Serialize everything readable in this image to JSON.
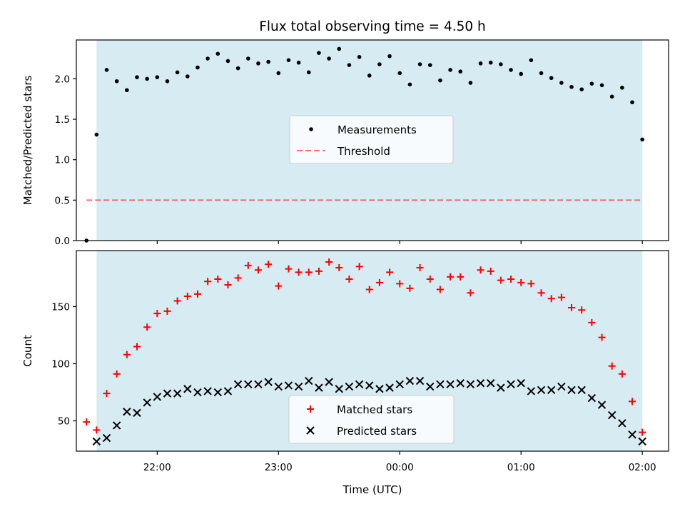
{
  "title": "Flux total observing time = 4.50 h",
  "colors": {
    "shade": "#add8e6",
    "measurement": "#000000",
    "threshold": "#ff0000",
    "matched": "#ff0000",
    "predicted": "#000000",
    "legend_bg": "#ffffff",
    "legend_border": "#cccccc"
  },
  "chart_data": [
    {
      "type": "scatter",
      "ylabel": "Matched/Predicted stars",
      "xlabel": "",
      "ylim": [
        0,
        2.48
      ],
      "yticks": [
        0.0,
        0.5,
        1.0,
        1.5,
        2.0
      ],
      "ytick_labels": [
        "0.0",
        "0.5",
        "1.0",
        "1.5",
        "2.0"
      ],
      "legend_position": "center",
      "shaded_span": {
        "start": "21:30",
        "end": "02:00"
      },
      "threshold": {
        "name": "Threshold",
        "value": 0.5,
        "x_start": "21:25",
        "x_end": "02:00",
        "style": "dashed"
      },
      "series": [
        {
          "name": "Measurements",
          "marker": "dot",
          "points": [
            [
              "21:25",
              0.0
            ],
            [
              "21:30",
              1.31
            ],
            [
              "21:35",
              2.11
            ],
            [
              "21:40",
              1.97
            ],
            [
              "21:45",
              1.86
            ],
            [
              "21:50",
              2.02
            ],
            [
              "21:55",
              2.0
            ],
            [
              "22:00",
              2.02
            ],
            [
              "22:05",
              1.97
            ],
            [
              "22:10",
              2.08
            ],
            [
              "22:15",
              2.03
            ],
            [
              "22:20",
              2.14
            ],
            [
              "22:25",
              2.25
            ],
            [
              "22:30",
              2.31
            ],
            [
              "22:35",
              2.22
            ],
            [
              "22:40",
              2.13
            ],
            [
              "22:45",
              2.25
            ],
            [
              "22:50",
              2.19
            ],
            [
              "22:55",
              2.21
            ],
            [
              "23:00",
              2.07
            ],
            [
              "23:05",
              2.23
            ],
            [
              "23:10",
              2.2
            ],
            [
              "23:15",
              2.08
            ],
            [
              "23:20",
              2.32
            ],
            [
              "23:25",
              2.25
            ],
            [
              "23:30",
              2.37
            ],
            [
              "23:35",
              2.17
            ],
            [
              "23:40",
              2.27
            ],
            [
              "23:45",
              2.04
            ],
            [
              "23:50",
              2.18
            ],
            [
              "23:55",
              2.28
            ],
            [
              "00:00",
              2.07
            ],
            [
              "00:05",
              1.93
            ],
            [
              "00:10",
              2.18
            ],
            [
              "00:15",
              2.17
            ],
            [
              "00:20",
              1.98
            ],
            [
              "00:25",
              2.11
            ],
            [
              "00:30",
              2.09
            ],
            [
              "00:35",
              1.95
            ],
            [
              "00:40",
              2.19
            ],
            [
              "00:45",
              2.2
            ],
            [
              "00:50",
              2.18
            ],
            [
              "00:55",
              2.11
            ],
            [
              "01:00",
              2.06
            ],
            [
              "01:05",
              2.23
            ],
            [
              "01:10",
              2.07
            ],
            [
              "01:15",
              2.01
            ],
            [
              "01:20",
              1.95
            ],
            [
              "01:25",
              1.9
            ],
            [
              "01:30",
              1.87
            ],
            [
              "01:35",
              1.94
            ],
            [
              "01:40",
              1.92
            ],
            [
              "01:45",
              1.78
            ],
            [
              "01:50",
              1.89
            ],
            [
              "01:55",
              1.71
            ],
            [
              "02:00",
              1.25
            ]
          ]
        }
      ]
    },
    {
      "type": "scatter",
      "ylabel": "Count",
      "xlabel": "Time (UTC)",
      "ylim": [
        23.5,
        199
      ],
      "yticks": [
        50,
        100,
        150
      ],
      "ytick_labels": [
        "50",
        "100",
        "150"
      ],
      "xticks": [
        "22:00",
        "23:00",
        "00:00",
        "01:00",
        "02:00"
      ],
      "xtick_labels": [
        "22:00",
        "23:00",
        "00:00",
        "01:00",
        "02:00"
      ],
      "legend_position": "bottom-center",
      "shaded_span": {
        "start": "21:30",
        "end": "02:00"
      },
      "series": [
        {
          "name": "Matched stars",
          "marker": "plus",
          "points": [
            [
              "21:25",
              49
            ],
            [
              "21:30",
              42
            ],
            [
              "21:35",
              74
            ],
            [
              "21:40",
              91
            ],
            [
              "21:45",
              108
            ],
            [
              "21:50",
              115
            ],
            [
              "21:55",
              132
            ],
            [
              "22:00",
              144
            ],
            [
              "22:05",
              146
            ],
            [
              "22:10",
              155
            ],
            [
              "22:15",
              159
            ],
            [
              "22:20",
              161
            ],
            [
              "22:25",
              172
            ],
            [
              "22:30",
              174
            ],
            [
              "22:35",
              169
            ],
            [
              "22:40",
              175
            ],
            [
              "22:45",
              186
            ],
            [
              "22:50",
              182
            ],
            [
              "22:55",
              187
            ],
            [
              "23:00",
              168
            ],
            [
              "23:05",
              183
            ],
            [
              "23:10",
              180
            ],
            [
              "23:15",
              180
            ],
            [
              "23:20",
              181
            ],
            [
              "23:25",
              189
            ],
            [
              "23:30",
              184
            ],
            [
              "23:35",
              174
            ],
            [
              "23:40",
              185
            ],
            [
              "23:45",
              165
            ],
            [
              "23:50",
              171
            ],
            [
              "23:55",
              180
            ],
            [
              "00:00",
              170
            ],
            [
              "00:05",
              166
            ],
            [
              "00:10",
              184
            ],
            [
              "00:15",
              174
            ],
            [
              "00:20",
              165
            ],
            [
              "00:25",
              176
            ],
            [
              "00:30",
              176
            ],
            [
              "00:35",
              162
            ],
            [
              "00:40",
              182
            ],
            [
              "00:45",
              181
            ],
            [
              "00:50",
              173
            ],
            [
              "00:55",
              174
            ],
            [
              "01:00",
              171
            ],
            [
              "01:05",
              170
            ],
            [
              "01:10",
              162
            ],
            [
              "01:15",
              157
            ],
            [
              "01:20",
              158
            ],
            [
              "01:25",
              149
            ],
            [
              "01:30",
              147
            ],
            [
              "01:35",
              136
            ],
            [
              "01:40",
              123
            ],
            [
              "01:45",
              98
            ],
            [
              "01:50",
              91
            ],
            [
              "01:55",
              67
            ],
            [
              "02:00",
              40
            ]
          ]
        },
        {
          "name": "Predicted stars",
          "marker": "x",
          "points": [
            [
              "21:30",
              32
            ],
            [
              "21:35",
              35
            ],
            [
              "21:40",
              46
            ],
            [
              "21:45",
              58
            ],
            [
              "21:50",
              57
            ],
            [
              "21:55",
              66
            ],
            [
              "22:00",
              71
            ],
            [
              "22:05",
              74
            ],
            [
              "22:10",
              74
            ],
            [
              "22:15",
              78
            ],
            [
              "22:20",
              75
            ],
            [
              "22:25",
              76
            ],
            [
              "22:30",
              75
            ],
            [
              "22:35",
              76
            ],
            [
              "22:40",
              82
            ],
            [
              "22:45",
              82
            ],
            [
              "22:50",
              82
            ],
            [
              "22:55",
              84
            ],
            [
              "23:00",
              80
            ],
            [
              "23:05",
              81
            ],
            [
              "23:10",
              80
            ],
            [
              "23:15",
              85
            ],
            [
              "23:20",
              79
            ],
            [
              "23:25",
              84
            ],
            [
              "23:30",
              78
            ],
            [
              "23:35",
              80
            ],
            [
              "23:40",
              82
            ],
            [
              "23:45",
              81
            ],
            [
              "23:50",
              78
            ],
            [
              "23:55",
              79
            ],
            [
              "00:00",
              82
            ],
            [
              "00:05",
              85
            ],
            [
              "00:10",
              85
            ],
            [
              "00:15",
              80
            ],
            [
              "00:20",
              82
            ],
            [
              "00:25",
              82
            ],
            [
              "00:30",
              83
            ],
            [
              "00:35",
              82
            ],
            [
              "00:40",
              83
            ],
            [
              "00:45",
              83
            ],
            [
              "00:50",
              79
            ],
            [
              "00:55",
              82
            ],
            [
              "01:00",
              83
            ],
            [
              "01:05",
              76
            ],
            [
              "01:10",
              77
            ],
            [
              "01:15",
              77
            ],
            [
              "01:20",
              80
            ],
            [
              "01:25",
              77
            ],
            [
              "01:30",
              77
            ],
            [
              "01:35",
              70
            ],
            [
              "01:40",
              64
            ],
            [
              "01:45",
              55
            ],
            [
              "01:50",
              48
            ],
            [
              "01:55",
              38
            ],
            [
              "02:00",
              32
            ]
          ]
        }
      ]
    }
  ]
}
